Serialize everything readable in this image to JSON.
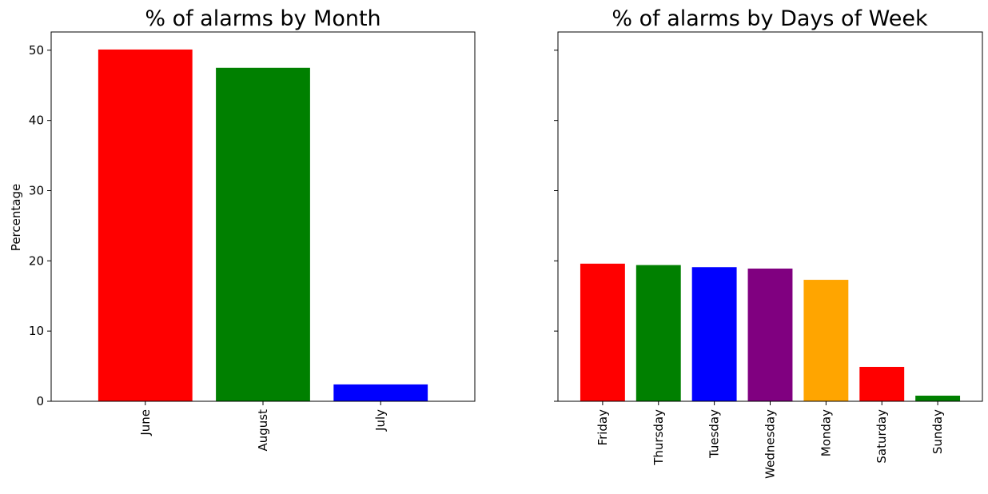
{
  "chart_data": [
    {
      "type": "bar",
      "title": "% of alarms by Month",
      "xlabel": "",
      "ylabel": "Percentage",
      "ylim": [
        0,
        52.6
      ],
      "yticks": [
        0,
        10,
        20,
        30,
        40,
        50
      ],
      "categories": [
        "June",
        "August",
        "July"
      ],
      "values": [
        50.1,
        47.5,
        2.4
      ],
      "colors": [
        "#ff0000",
        "#008000",
        "#0000ff"
      ],
      "show_ytick_labels": true
    },
    {
      "type": "bar",
      "title": "% of alarms by Days of Week",
      "xlabel": "",
      "ylabel": "",
      "ylim": [
        0,
        52.6
      ],
      "yticks": [
        0,
        10,
        20,
        30,
        40,
        50
      ],
      "categories": [
        "Friday",
        "Thursday",
        "Tuesday",
        "Wednesday",
        "Monday",
        "Saturday",
        "Sunday"
      ],
      "values": [
        19.6,
        19.4,
        19.1,
        18.9,
        17.3,
        4.9,
        0.8
      ],
      "colors": [
        "#ff0000",
        "#008000",
        "#0000ff",
        "#800080",
        "#ffa500",
        "#ff0000",
        "#008000"
      ],
      "show_ytick_labels": false
    }
  ]
}
